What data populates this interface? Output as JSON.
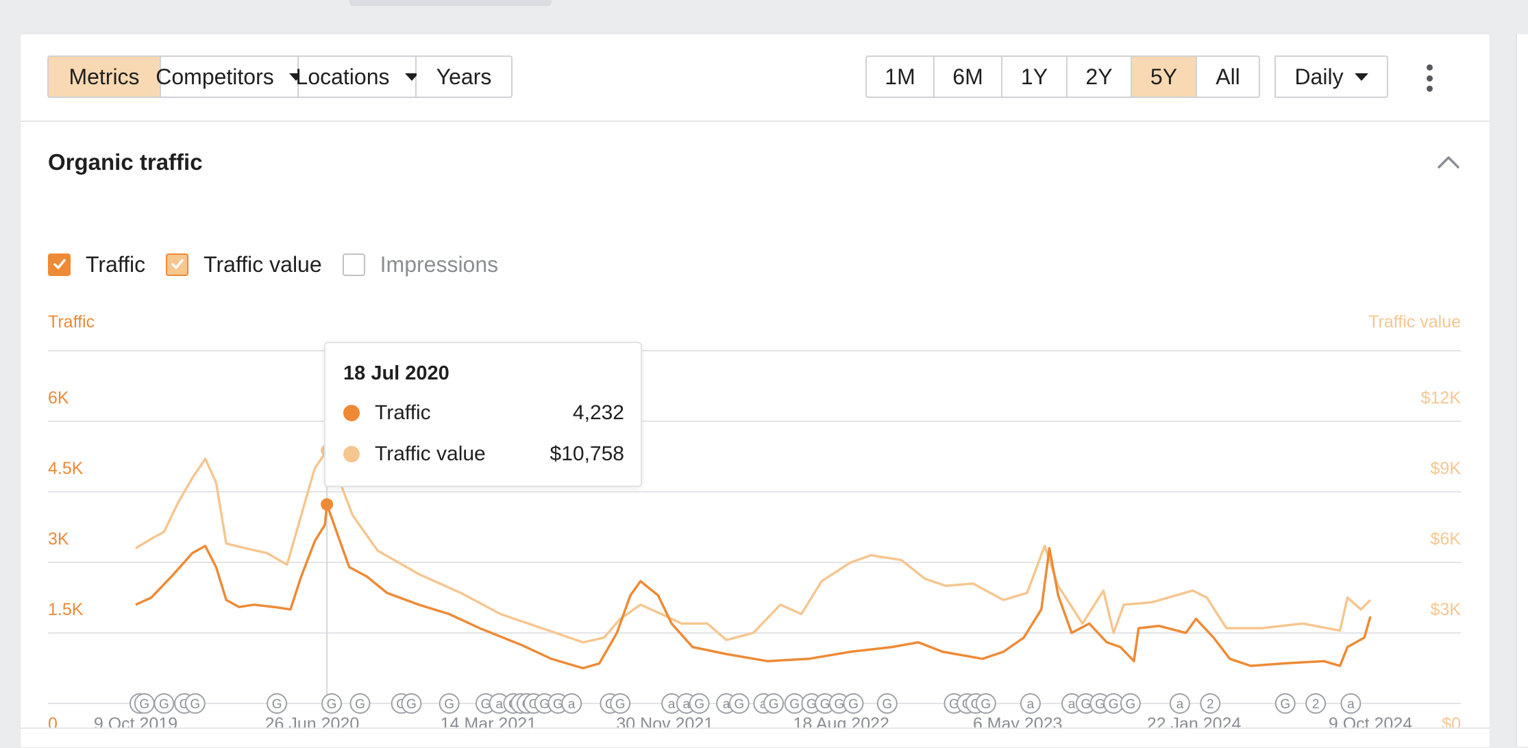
{
  "toolbar": {
    "left_buttons": [
      {
        "label": "Metrics",
        "active": true
      },
      {
        "label": "Competitors",
        "dropdown": true
      },
      {
        "label": "Locations",
        "dropdown": true
      },
      {
        "label": "Years"
      }
    ],
    "ranges": [
      {
        "label": "1M"
      },
      {
        "label": "6M"
      },
      {
        "label": "1Y"
      },
      {
        "label": "2Y"
      },
      {
        "label": "5Y",
        "active": true
      },
      {
        "label": "All"
      }
    ],
    "interval": "Daily",
    "more_icon": "kebab-vertical-icon"
  },
  "section": {
    "title": "Organic traffic",
    "collapse_icon": "chevron-up-icon"
  },
  "legend": {
    "items": [
      {
        "label": "Traffic",
        "checked": true
      },
      {
        "label": "Traffic value",
        "checked": true
      },
      {
        "label": "Impressions",
        "checked": false
      }
    ]
  },
  "tooltip": {
    "date": "18 Jul 2020",
    "rows": [
      {
        "label": "Traffic",
        "value": "4,232",
        "color": "#ee8a35"
      },
      {
        "label": "Traffic value",
        "value": "$10,758",
        "color": "#f6c68f"
      }
    ]
  },
  "chart_data": {
    "type": "line",
    "left_axis_label": "Traffic",
    "right_axis_label": "Traffic value",
    "left_ticks": [
      "0",
      "1.5K",
      "3K",
      "4.5K",
      "6K"
    ],
    "right_ticks": [
      "$0",
      "$3K",
      "$6K",
      "$9K",
      "$12K"
    ],
    "x_ticks": [
      "9 Oct 2019",
      "26 Jun 2020",
      "14 Mar 2021",
      "30 Nov 2021",
      "18 Aug 2022",
      "6 May 2023",
      "22 Jan 2024",
      "9 Oct 2024"
    ],
    "ylim_left": [
      0,
      7500
    ],
    "ylim_right": [
      0,
      15000
    ],
    "colors": {
      "traffic": "#ee8a35",
      "traffic_value": "#f6c68f"
    },
    "series": [
      {
        "name": "Traffic",
        "axis": "left",
        "points": [
          [
            "2019-10-09",
            2100
          ],
          [
            "2019-11-01",
            2250
          ],
          [
            "2019-12-01",
            2700
          ],
          [
            "2020-01-01",
            3200
          ],
          [
            "2020-01-20",
            3350
          ],
          [
            "2020-02-05",
            2900
          ],
          [
            "2020-02-20",
            2200
          ],
          [
            "2020-03-10",
            2050
          ],
          [
            "2020-04-01",
            2100
          ],
          [
            "2020-05-01",
            2050
          ],
          [
            "2020-05-25",
            2000
          ],
          [
            "2020-06-10",
            2700
          ],
          [
            "2020-06-30",
            3450
          ],
          [
            "2020-07-15",
            3800
          ],
          [
            "2020-07-18",
            4232
          ],
          [
            "2020-08-05",
            3500
          ],
          [
            "2020-08-20",
            2900
          ],
          [
            "2020-09-15",
            2700
          ],
          [
            "2020-10-15",
            2350
          ],
          [
            "2020-12-01",
            2100
          ],
          [
            "2021-01-15",
            1900
          ],
          [
            "2021-03-01",
            1600
          ],
          [
            "2021-05-01",
            1250
          ],
          [
            "2021-06-15",
            950
          ],
          [
            "2021-08-01",
            750
          ],
          [
            "2021-08-25",
            850
          ],
          [
            "2021-09-20",
            1500
          ],
          [
            "2021-10-10",
            2300
          ],
          [
            "2021-10-25",
            2600
          ],
          [
            "2021-11-20",
            2300
          ],
          [
            "2021-12-10",
            1700
          ],
          [
            "2022-01-10",
            1200
          ],
          [
            "2022-03-01",
            1050
          ],
          [
            "2022-05-01",
            900
          ],
          [
            "2022-07-01",
            950
          ],
          [
            "2022-09-01",
            1100
          ],
          [
            "2022-11-01",
            1200
          ],
          [
            "2022-12-10",
            1300
          ],
          [
            "2023-01-15",
            1100
          ],
          [
            "2023-03-15",
            950
          ],
          [
            "2023-04-15",
            1100
          ],
          [
            "2023-05-15",
            1400
          ],
          [
            "2023-06-10",
            2000
          ],
          [
            "2023-06-22",
            3300
          ],
          [
            "2023-07-05",
            2300
          ],
          [
            "2023-07-25",
            1500
          ],
          [
            "2023-08-20",
            1700
          ],
          [
            "2023-09-15",
            1300
          ],
          [
            "2023-10-05",
            1200
          ],
          [
            "2023-10-25",
            900
          ],
          [
            "2023-11-01",
            1600
          ],
          [
            "2023-12-01",
            1650
          ],
          [
            "2024-01-10",
            1500
          ],
          [
            "2024-01-25",
            1800
          ],
          [
            "2024-02-20",
            1400
          ],
          [
            "2024-03-15",
            950
          ],
          [
            "2024-04-15",
            800
          ],
          [
            "2024-06-01",
            850
          ],
          [
            "2024-08-01",
            900
          ],
          [
            "2024-08-25",
            800
          ],
          [
            "2024-09-05",
            1200
          ],
          [
            "2024-09-30",
            1400
          ],
          [
            "2024-10-09",
            1850
          ]
        ]
      },
      {
        "name": "Traffic value",
        "axis": "right",
        "points": [
          [
            "2019-10-09",
            6600
          ],
          [
            "2019-11-01",
            7000
          ],
          [
            "2019-11-20",
            7300
          ],
          [
            "2019-12-10",
            8500
          ],
          [
            "2020-01-01",
            9600
          ],
          [
            "2020-01-20",
            10400
          ],
          [
            "2020-02-05",
            9400
          ],
          [
            "2020-02-20",
            6800
          ],
          [
            "2020-03-20",
            6600
          ],
          [
            "2020-04-20",
            6400
          ],
          [
            "2020-05-20",
            5900
          ],
          [
            "2020-06-10",
            8000
          ],
          [
            "2020-06-30",
            10000
          ],
          [
            "2020-07-18",
            10758
          ],
          [
            "2020-08-05",
            9500
          ],
          [
            "2020-08-25",
            8000
          ],
          [
            "2020-10-01",
            6500
          ],
          [
            "2020-12-01",
            5500
          ],
          [
            "2021-02-01",
            4700
          ],
          [
            "2021-04-01",
            3800
          ],
          [
            "2021-06-01",
            3200
          ],
          [
            "2021-08-01",
            2600
          ],
          [
            "2021-09-01",
            2800
          ],
          [
            "2021-09-25",
            3600
          ],
          [
            "2021-10-25",
            4200
          ],
          [
            "2021-11-25",
            3800
          ],
          [
            "2021-12-25",
            3400
          ],
          [
            "2022-02-01",
            3400
          ],
          [
            "2022-03-01",
            2700
          ],
          [
            "2022-04-10",
            3000
          ],
          [
            "2022-05-20",
            4200
          ],
          [
            "2022-06-20",
            3800
          ],
          [
            "2022-07-20",
            5200
          ],
          [
            "2022-09-01",
            6000
          ],
          [
            "2022-10-01",
            6300
          ],
          [
            "2022-11-15",
            6100
          ],
          [
            "2022-12-20",
            5300
          ],
          [
            "2023-01-20",
            5000
          ],
          [
            "2023-03-01",
            5100
          ],
          [
            "2023-04-15",
            4400
          ],
          [
            "2023-05-20",
            4700
          ],
          [
            "2023-06-15",
            6700
          ],
          [
            "2023-07-05",
            5000
          ],
          [
            "2023-08-10",
            3400
          ],
          [
            "2023-09-10",
            4800
          ],
          [
            "2023-09-25",
            3000
          ],
          [
            "2023-10-10",
            4200
          ],
          [
            "2023-11-20",
            4300
          ],
          [
            "2024-01-20",
            4800
          ],
          [
            "2024-02-10",
            4500
          ],
          [
            "2024-03-10",
            3200
          ],
          [
            "2024-05-01",
            3200
          ],
          [
            "2024-07-01",
            3400
          ],
          [
            "2024-08-25",
            3100
          ],
          [
            "2024-09-05",
            4500
          ],
          [
            "2024-09-25",
            4000
          ],
          [
            "2024-10-09",
            4400
          ]
        ]
      }
    ],
    "hover_date": "2020-07-18",
    "event_markers": [
      {
        "date": "2019-10-15",
        "label": "G"
      },
      {
        "date": "2019-10-22",
        "label": "G"
      },
      {
        "date": "2019-11-20",
        "label": "G"
      },
      {
        "date": "2019-12-20",
        "label": "G"
      },
      {
        "date": "2020-01-05",
        "label": "G"
      },
      {
        "date": "2020-05-05",
        "label": "G"
      },
      {
        "date": "2020-07-25",
        "label": "G"
      },
      {
        "date": "2020-09-05",
        "label": "G"
      },
      {
        "date": "2020-11-05",
        "label": "G"
      },
      {
        "date": "2020-11-20",
        "label": "G"
      },
      {
        "date": "2021-01-15",
        "label": "G"
      },
      {
        "date": "2021-03-10",
        "label": "G"
      },
      {
        "date": "2021-03-30",
        "label": "a"
      },
      {
        "date": "2021-04-20",
        "label": "G"
      },
      {
        "date": "2021-05-01",
        "label": "G"
      },
      {
        "date": "2021-05-10",
        "label": "G"
      },
      {
        "date": "2021-05-20",
        "label": "G"
      },
      {
        "date": "2021-06-05",
        "label": "G"
      },
      {
        "date": "2021-06-25",
        "label": "G"
      },
      {
        "date": "2021-07-15",
        "label": "a"
      },
      {
        "date": "2021-09-10",
        "label": "G"
      },
      {
        "date": "2021-09-25",
        "label": "G"
      },
      {
        "date": "2021-12-10",
        "label": "a"
      },
      {
        "date": "2022-01-01",
        "label": "a"
      },
      {
        "date": "2022-01-20",
        "label": "G"
      },
      {
        "date": "2022-03-01",
        "label": "a"
      },
      {
        "date": "2022-03-20",
        "label": "G"
      },
      {
        "date": "2022-04-25",
        "label": "a"
      },
      {
        "date": "2022-05-10",
        "label": "G"
      },
      {
        "date": "2022-06-10",
        "label": "G"
      },
      {
        "date": "2022-07-05",
        "label": "G"
      },
      {
        "date": "2022-07-25",
        "label": "G"
      },
      {
        "date": "2022-08-15",
        "label": "G"
      },
      {
        "date": "2022-09-05",
        "label": "G"
      },
      {
        "date": "2022-10-25",
        "label": "G"
      },
      {
        "date": "2023-02-01",
        "label": "G"
      },
      {
        "date": "2023-02-20",
        "label": "G"
      },
      {
        "date": "2023-03-05",
        "label": "G"
      },
      {
        "date": "2023-03-20",
        "label": "G"
      },
      {
        "date": "2023-05-25",
        "label": "a"
      },
      {
        "date": "2023-07-25",
        "label": "a"
      },
      {
        "date": "2023-08-15",
        "label": "G"
      },
      {
        "date": "2023-09-05",
        "label": "G"
      },
      {
        "date": "2023-09-25",
        "label": "G"
      },
      {
        "date": "2023-10-20",
        "label": "G"
      },
      {
        "date": "2024-01-01",
        "label": "a"
      },
      {
        "date": "2024-02-15",
        "label": "2"
      },
      {
        "date": "2024-06-05",
        "label": "G"
      },
      {
        "date": "2024-07-20",
        "label": "2"
      },
      {
        "date": "2024-09-10",
        "label": "a"
      }
    ]
  }
}
